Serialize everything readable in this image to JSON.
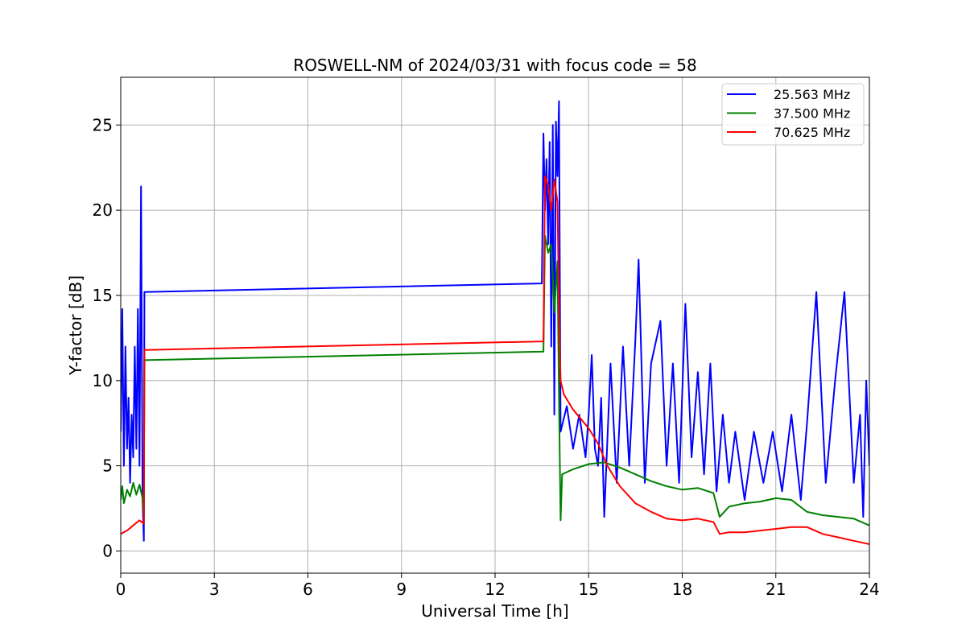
{
  "chart_data": {
    "type": "line",
    "title": "ROSWELL-NM of 2024/03/31 with focus code = 58",
    "xlabel": "Universal Time [h]",
    "ylabel": "Y-factor [dB]",
    "xlim": [
      0,
      24
    ],
    "ylim": [
      -1.3,
      27.8
    ],
    "xticks": [
      0,
      3,
      6,
      9,
      12,
      15,
      18,
      21,
      24
    ],
    "yticks": [
      0,
      5,
      10,
      15,
      20,
      25
    ],
    "grid": true,
    "legend_position": "top-right",
    "series": [
      {
        "name": "25.563 MHz",
        "color": "#0000ff",
        "points": [
          [
            0.0,
            7.0
          ],
          [
            0.05,
            14.2
          ],
          [
            0.1,
            5.0
          ],
          [
            0.15,
            12.0
          ],
          [
            0.2,
            6.0
          ],
          [
            0.25,
            9.0
          ],
          [
            0.3,
            4.0
          ],
          [
            0.35,
            8.0
          ],
          [
            0.4,
            5.5
          ],
          [
            0.45,
            12.0
          ],
          [
            0.5,
            6.0
          ],
          [
            0.55,
            14.2
          ],
          [
            0.6,
            5.0
          ],
          [
            0.65,
            21.4
          ],
          [
            0.7,
            3.0
          ],
          [
            0.74,
            0.6
          ],
          [
            0.76,
            15.2
          ],
          [
            13.5,
            15.7
          ],
          [
            13.55,
            24.5
          ],
          [
            13.6,
            20.0
          ],
          [
            13.65,
            23.0
          ],
          [
            13.7,
            18.0
          ],
          [
            13.75,
            24.0
          ],
          [
            13.8,
            12.0
          ],
          [
            13.85,
            25.0
          ],
          [
            13.9,
            8.0
          ],
          [
            13.95,
            25.2
          ],
          [
            14.0,
            22.0
          ],
          [
            14.05,
            26.4
          ],
          [
            14.1,
            7.0
          ],
          [
            14.3,
            8.5
          ],
          [
            14.5,
            6.0
          ],
          [
            14.7,
            8.0
          ],
          [
            14.9,
            5.5
          ],
          [
            15.0,
            8.0
          ],
          [
            15.1,
            11.5
          ],
          [
            15.2,
            6.0
          ],
          [
            15.3,
            5.0
          ],
          [
            15.4,
            9.0
          ],
          [
            15.5,
            2.0
          ],
          [
            15.7,
            11.0
          ],
          [
            15.9,
            4.0
          ],
          [
            16.1,
            12.0
          ],
          [
            16.3,
            5.0
          ],
          [
            16.5,
            12.5
          ],
          [
            16.6,
            17.1
          ],
          [
            16.8,
            4.0
          ],
          [
            17.0,
            11.0
          ],
          [
            17.3,
            13.5
          ],
          [
            17.5,
            5.0
          ],
          [
            17.7,
            11.0
          ],
          [
            17.9,
            4.0
          ],
          [
            18.1,
            14.5
          ],
          [
            18.3,
            5.5
          ],
          [
            18.5,
            10.5
          ],
          [
            18.7,
            4.5
          ],
          [
            18.9,
            11.0
          ],
          [
            19.1,
            3.5
          ],
          [
            19.3,
            8.0
          ],
          [
            19.5,
            4.0
          ],
          [
            19.7,
            7.0
          ],
          [
            20.0,
            3.0
          ],
          [
            20.3,
            7.0
          ],
          [
            20.6,
            4.0
          ],
          [
            20.9,
            7.0
          ],
          [
            21.2,
            3.5
          ],
          [
            21.5,
            8.0
          ],
          [
            21.8,
            3.0
          ],
          [
            22.0,
            7.5
          ],
          [
            22.3,
            15.2
          ],
          [
            22.6,
            4.0
          ],
          [
            22.9,
            10.0
          ],
          [
            23.2,
            15.2
          ],
          [
            23.5,
            4.0
          ],
          [
            23.7,
            8.0
          ],
          [
            23.8,
            2.0
          ],
          [
            23.9,
            10.0
          ],
          [
            24.0,
            5.0
          ]
        ]
      },
      {
        "name": "37.500 MHz",
        "color": "#008000",
        "points": [
          [
            0.0,
            3.0
          ],
          [
            0.05,
            3.8
          ],
          [
            0.1,
            2.8
          ],
          [
            0.2,
            3.6
          ],
          [
            0.3,
            3.2
          ],
          [
            0.4,
            4.0
          ],
          [
            0.5,
            3.3
          ],
          [
            0.6,
            3.9
          ],
          [
            0.7,
            3.1
          ],
          [
            0.74,
            2.0
          ],
          [
            0.76,
            11.2
          ],
          [
            13.55,
            11.7
          ],
          [
            13.6,
            18.5
          ],
          [
            13.7,
            17.5
          ],
          [
            13.8,
            18.0
          ],
          [
            13.9,
            14.0
          ],
          [
            14.0,
            17.0
          ],
          [
            14.05,
            9.0
          ],
          [
            14.1,
            1.8
          ],
          [
            14.15,
            4.5
          ],
          [
            14.5,
            4.8
          ],
          [
            15.0,
            5.1
          ],
          [
            15.5,
            5.2
          ],
          [
            16.0,
            4.9
          ],
          [
            16.5,
            4.5
          ],
          [
            17.0,
            4.1
          ],
          [
            17.5,
            3.8
          ],
          [
            18.0,
            3.6
          ],
          [
            18.5,
            3.7
          ],
          [
            19.0,
            3.4
          ],
          [
            19.2,
            2.0
          ],
          [
            19.5,
            2.6
          ],
          [
            20.0,
            2.8
          ],
          [
            20.5,
            2.9
          ],
          [
            21.0,
            3.1
          ],
          [
            21.5,
            3.0
          ],
          [
            22.0,
            2.3
          ],
          [
            22.5,
            2.1
          ],
          [
            23.0,
            2.0
          ],
          [
            23.5,
            1.9
          ],
          [
            24.0,
            1.5
          ]
        ]
      },
      {
        "name": "70.625 MHz",
        "color": "#ff0000",
        "points": [
          [
            0.0,
            1.0
          ],
          [
            0.2,
            1.2
          ],
          [
            0.4,
            1.5
          ],
          [
            0.6,
            1.8
          ],
          [
            0.74,
            1.6
          ],
          [
            0.76,
            11.8
          ],
          [
            13.55,
            12.3
          ],
          [
            13.6,
            22.0
          ],
          [
            13.7,
            21.5
          ],
          [
            13.8,
            20.0
          ],
          [
            13.9,
            21.8
          ],
          [
            14.0,
            20.5
          ],
          [
            14.05,
            14.0
          ],
          [
            14.1,
            10.0
          ],
          [
            14.2,
            9.2
          ],
          [
            14.5,
            8.3
          ],
          [
            15.0,
            7.2
          ],
          [
            15.3,
            6.3
          ],
          [
            15.6,
            5.0
          ],
          [
            16.0,
            3.8
          ],
          [
            16.5,
            2.8
          ],
          [
            17.0,
            2.3
          ],
          [
            17.5,
            1.9
          ],
          [
            18.0,
            1.8
          ],
          [
            18.5,
            1.9
          ],
          [
            19.0,
            1.7
          ],
          [
            19.2,
            1.0
          ],
          [
            19.5,
            1.1
          ],
          [
            20.0,
            1.1
          ],
          [
            20.5,
            1.2
          ],
          [
            21.0,
            1.3
          ],
          [
            21.5,
            1.4
          ],
          [
            22.0,
            1.4
          ],
          [
            22.5,
            1.0
          ],
          [
            23.0,
            0.8
          ],
          [
            23.5,
            0.6
          ],
          [
            24.0,
            0.4
          ]
        ]
      }
    ]
  }
}
